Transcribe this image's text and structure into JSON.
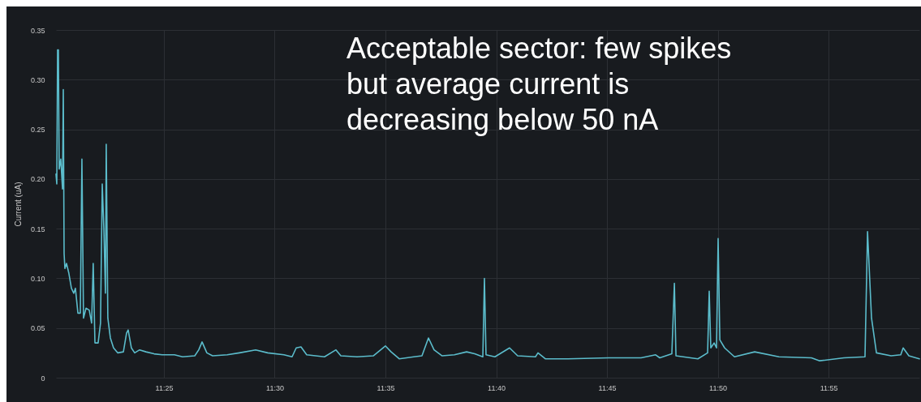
{
  "chart_data": {
    "type": "line",
    "ylabel": "Current (uA)",
    "annotations": [
      "Acceptable sector: few spikes but average current is decreasing below 50 nA"
    ],
    "x": [
      11.3355,
      11.3361,
      11.3367,
      11.3373,
      11.3379,
      11.3391,
      11.3404,
      11.341,
      11.3416,
      11.3422,
      11.3434,
      11.3452,
      11.3471,
      11.3489,
      11.3501,
      11.352,
      11.3538,
      11.355,
      11.3562,
      11.3581,
      11.3605,
      11.3623,
      11.3635,
      11.3648,
      11.3672,
      11.369,
      11.3703,
      11.3715,
      11.3727,
      11.3733,
      11.3745,
      11.3764,
      11.3788,
      11.3819,
      11.3862,
      11.3886,
      11.3898,
      11.3922,
      11.3947,
      11.3984,
      11.4032,
      11.4093,
      11.4154,
      11.4246,
      11.4307,
      11.4399,
      11.4429,
      11.4454,
      11.449,
      11.4533,
      11.4643,
      11.4734,
      11.4857,
      11.4948,
      11.507,
      11.5131,
      11.5162,
      11.5198,
      11.5241,
      11.5375,
      11.5461,
      11.5498,
      11.562,
      11.5742,
      11.5833,
      11.5876,
      11.5937,
      11.6047,
      11.6108,
      11.6157,
      11.6199,
      11.626,
      11.6352,
      11.6444,
      11.6505,
      11.6566,
      11.6578,
      11.659,
      11.6657,
      11.6767,
      11.6828,
      11.6962,
      11.6981,
      11.7036,
      11.7207,
      11.7512,
      11.7756,
      11.7866,
      11.7897,
      11.7988,
      11.8007,
      11.8019,
      11.8184,
      11.8257,
      11.8269,
      11.8281,
      11.8306,
      11.8324,
      11.8336,
      11.8349,
      11.8385,
      11.8459,
      11.8611,
      11.8794,
      11.9038,
      11.91,
      11.9283,
      11.9441,
      11.946,
      11.949,
      11.9527,
      11.9637,
      11.971,
      11.9728,
      11.9771,
      11.985
    ],
    "series": [
      {
        "color": "#5bbccb",
        "values": [
          0.205,
          0.195,
          0.33,
          0.33,
          0.21,
          0.22,
          0.19,
          0.29,
          0.125,
          0.11,
          0.115,
          0.105,
          0.09,
          0.085,
          0.09,
          0.065,
          0.065,
          0.22,
          0.06,
          0.07,
          0.068,
          0.055,
          0.115,
          0.035,
          0.035,
          0.055,
          0.195,
          0.15,
          0.085,
          0.235,
          0.06,
          0.04,
          0.03,
          0.025,
          0.026,
          0.045,
          0.048,
          0.03,
          0.025,
          0.028,
          0.026,
          0.024,
          0.023,
          0.023,
          0.021,
          0.022,
          0.028,
          0.036,
          0.025,
          0.022,
          0.023,
          0.025,
          0.028,
          0.025,
          0.023,
          0.021,
          0.03,
          0.031,
          0.023,
          0.021,
          0.028,
          0.022,
          0.021,
          0.022,
          0.032,
          0.026,
          0.019,
          0.021,
          0.022,
          0.04,
          0.028,
          0.022,
          0.023,
          0.026,
          0.024,
          0.021,
          0.1,
          0.023,
          0.021,
          0.03,
          0.022,
          0.021,
          0.025,
          0.019,
          0.019,
          0.02,
          0.02,
          0.023,
          0.02,
          0.024,
          0.095,
          0.022,
          0.019,
          0.025,
          0.087,
          0.03,
          0.035,
          0.03,
          0.14,
          0.038,
          0.03,
          0.021,
          0.026,
          0.021,
          0.02,
          0.017,
          0.02,
          0.021,
          0.147,
          0.06,
          0.025,
          0.022,
          0.023,
          0.03,
          0.022,
          0.019
        ]
      }
    ],
    "xlim": [
      11.3355,
      11.985
    ],
    "xticks": [
      {
        "value": 11.416667,
        "label": "11:25"
      },
      {
        "value": 11.5,
        "label": "11:30"
      },
      {
        "value": 11.583333,
        "label": "11:35"
      },
      {
        "value": 11.666667,
        "label": "11:40"
      },
      {
        "value": 11.75,
        "label": "11:45"
      },
      {
        "value": 11.833333,
        "label": "11:50"
      },
      {
        "value": 11.916667,
        "label": "11:55"
      }
    ],
    "ylim": [
      0,
      0.35
    ],
    "yticks": [
      {
        "value": 0,
        "label": "0"
      },
      {
        "value": 0.05,
        "label": "0.05"
      },
      {
        "value": 0.1,
        "label": "0.10"
      },
      {
        "value": 0.15,
        "label": "0.15"
      },
      {
        "value": 0.2,
        "label": "0.20"
      },
      {
        "value": 0.25,
        "label": "0.25"
      },
      {
        "value": 0.3,
        "label": "0.30"
      },
      {
        "value": 0.35,
        "label": "0.35"
      }
    ],
    "grid": true,
    "marker": "none",
    "line_style": "solid"
  }
}
